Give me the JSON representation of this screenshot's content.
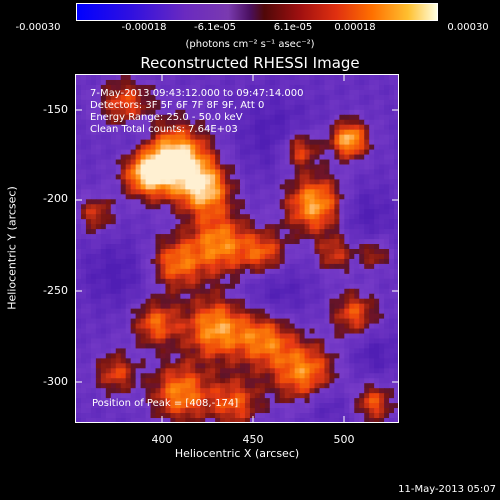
{
  "colorbar": {
    "ticks": [
      "-0.00030",
      "-0.00018",
      "-6.1e-05",
      "6.1e-05",
      "0.00018",
      "0.00030"
    ],
    "units": "(photons cm⁻² s⁻¹ asec⁻²)"
  },
  "title": "Reconstructed RHESSI Image",
  "annotations": {
    "time_range": "7-May-2013 09:43:12.000 to 09:47:14.000",
    "detectors": "Detectors: 3F 5F 6F 7F 8F 9F, Att 0",
    "energy": "Energy Range: 25.0 - 50.0 keV",
    "clean": "Clean    Total counts: 7.64E+03",
    "peak": "Position of Peak = [408,-174]"
  },
  "axes": {
    "xlabel": "Heliocentric X (arcsec)",
    "ylabel": "Heliocentric Y (arcsec)",
    "xticks": [
      "400",
      "450",
      "500"
    ],
    "yticks": [
      "-150",
      "-200",
      "-250",
      "-300"
    ]
  },
  "footer": {
    "date": "11-May-2013 05:07"
  },
  "chart_data": {
    "type": "heatmap",
    "title": "Reconstructed RHESSI Image",
    "xlabel": "Heliocentric X (arcsec)",
    "ylabel": "Heliocentric Y (arcsec)",
    "xlim": [
      358,
      543
    ],
    "ylim": [
      -322,
      -130
    ],
    "color_range": [
      -0.0003,
      0.0003
    ],
    "peak": [
      408,
      -174
    ],
    "colormap": [
      "#0000ff",
      "#7a30b8",
      "#5a2090",
      "#8a1010",
      "#e03010",
      "#ff8000",
      "#ffd040",
      "#ffffc0"
    ]
  }
}
